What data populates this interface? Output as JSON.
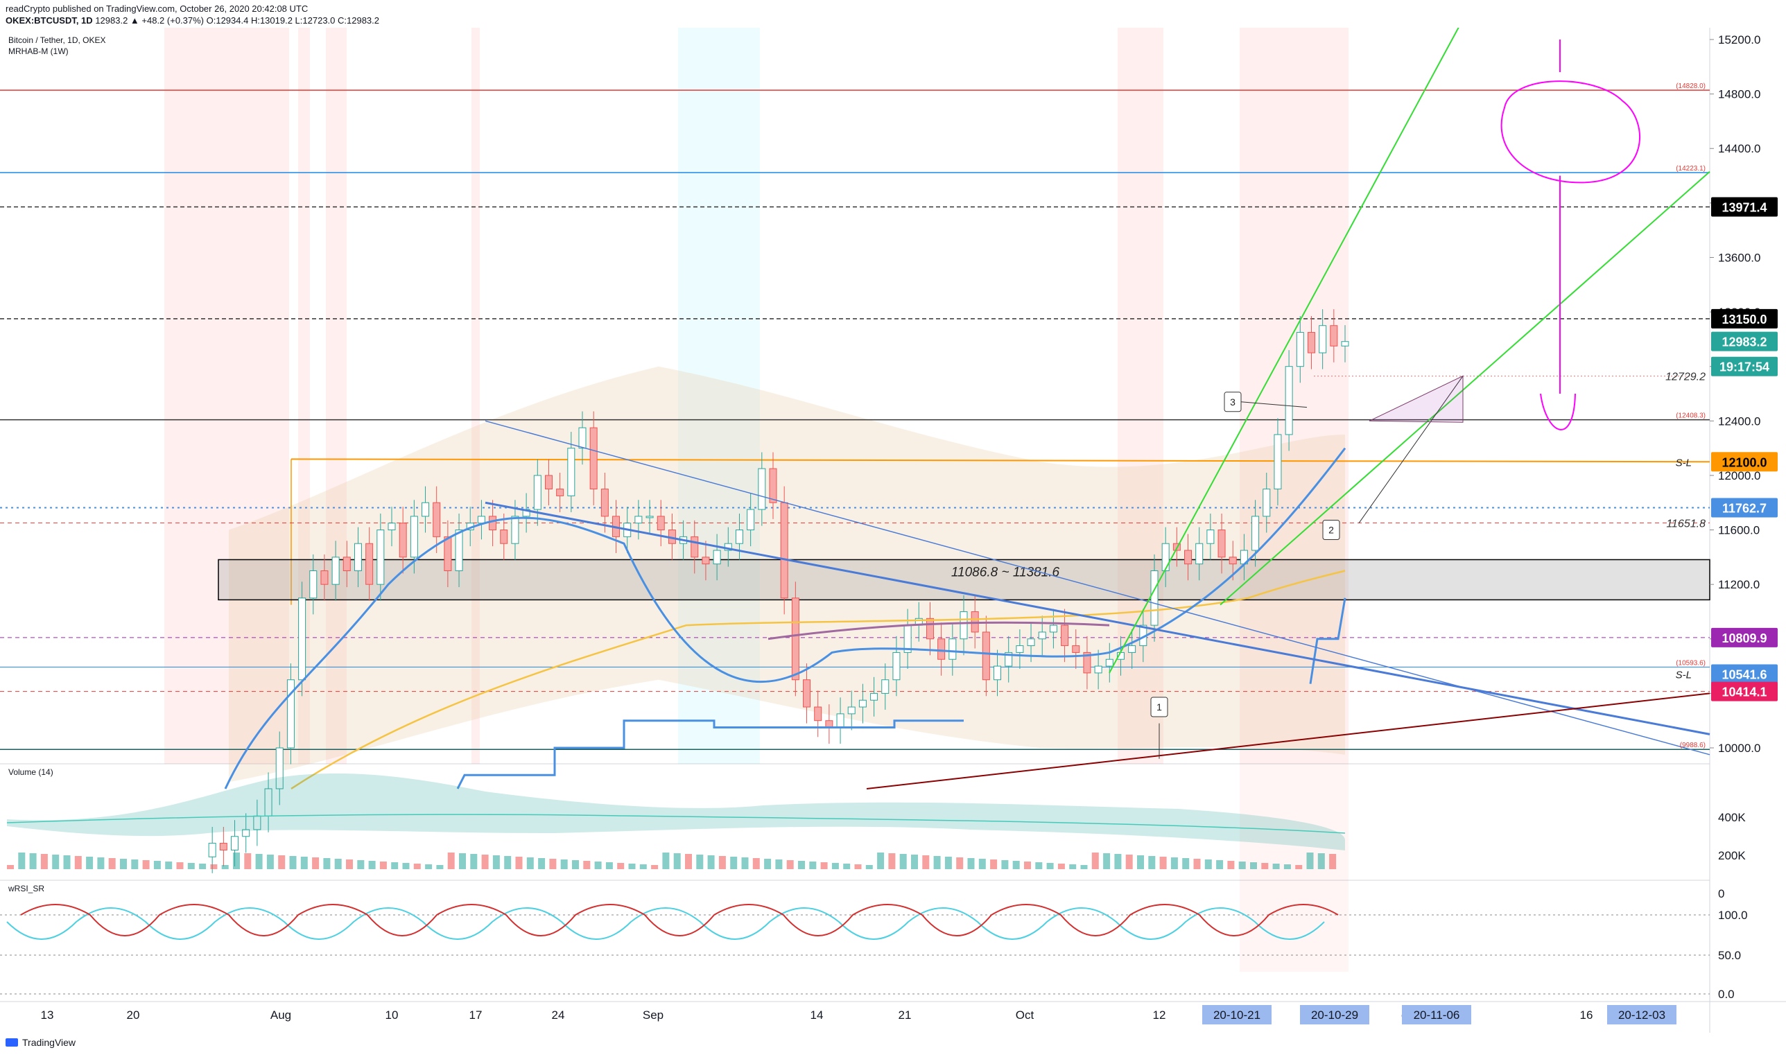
{
  "header": {
    "published": "readCrypto published on TradingView.com, October 26, 2020 20:42:08 UTC",
    "symbol_line": "OKEX:BTCUSDT, 1D",
    "ohlc": "12983.2 ▲ +48.2 (+0.37%) O:12934.4 H:13019.2 L:12723.0 C:12983.2"
  },
  "legend": {
    "symbol_title": "Bitcoin / Tether, 1D, OKEX",
    "indicator": "MRHAB-M (1W)",
    "volume": "Volume (14)",
    "wrsi": "wRSI_SR"
  },
  "footer": {
    "brand": "TradingView"
  },
  "colors": {
    "bull": "#26a69a",
    "bear": "#ef5350",
    "accent_blue": "#4a90e2",
    "trend_green": "#33dd33",
    "magenta": "#ff00ff",
    "orange": "#ff9800"
  },
  "chart_data": {
    "type": "candlestick",
    "price_scale": {
      "min": 9700,
      "max": 15250,
      "ticks": [
        "15200.0",
        "14800.0",
        "14400.0",
        "14000.0",
        "13600.0",
        "13200.0",
        "12800.0",
        "12400.0",
        "12000.0",
        "11600.0",
        "11200.0",
        "10800.0",
        "10400.0",
        "10000.0"
      ]
    },
    "time_labels": [
      "13",
      "20",
      "Aug",
      "10",
      "17",
      "24",
      "Sep",
      "14",
      "21",
      "Oct",
      "12",
      "16",
      "9",
      "16",
      "ov"
    ],
    "price_badges": [
      {
        "text": "13971.4",
        "price": 13971.4,
        "bg": "#000000",
        "fg": "#ffffff"
      },
      {
        "text": "13150.0",
        "price": 13150.0,
        "bg": "#000000",
        "fg": "#ffffff"
      },
      {
        "text": "12983.2",
        "price": 12983.2,
        "bg": "#26a69a",
        "fg": "#ffffff"
      },
      {
        "text": "19:17:54",
        "price": 12800.0,
        "bg": "#26a69a",
        "fg": "#ffffff"
      },
      {
        "text": "12100.0",
        "price": 12100.0,
        "bg": "#ff9800",
        "fg": "#000000"
      },
      {
        "text": "11762.7",
        "price": 11762.7,
        "bg": "#4a90e2",
        "fg": "#ffffff"
      },
      {
        "text": "10809.9",
        "price": 10809.9,
        "bg": "#9c27b0",
        "fg": "#ffffff"
      },
      {
        "text": "10541.6",
        "price": 10541.6,
        "bg": "#4a90e2",
        "fg": "#ffffff"
      },
      {
        "text": "10414.1",
        "price": 10414.1,
        "bg": "#e91e63",
        "fg": "#ffffff"
      }
    ],
    "line_labels": [
      {
        "text": "(14828.0)",
        "price": 14828.0
      },
      {
        "text": "(14223.1)",
        "price": 14223.1
      },
      {
        "text": "12729.2",
        "price": 12729.2
      },
      {
        "text": "(12408.3)",
        "price": 12408.3
      },
      {
        "text": "11651.8",
        "price": 11651.8
      },
      {
        "text": "(10593.6)",
        "price": 10593.6
      },
      {
        "text": "(9988.6)",
        "price": 9988.6
      }
    ],
    "sl_labels": [
      "S-L",
      "S-L"
    ],
    "zone_label": "11086.8 ~ 11381.6",
    "point_labels": [
      "1",
      "2",
      "3"
    ],
    "date_badges": [
      "20-10-21",
      "20-10-29",
      "20-11-06",
      "20-12-03"
    ],
    "volume_scale": [
      "400K",
      "200K",
      "0"
    ],
    "rsi_scale": [
      "100.0",
      "50.0",
      "0.0"
    ]
  }
}
